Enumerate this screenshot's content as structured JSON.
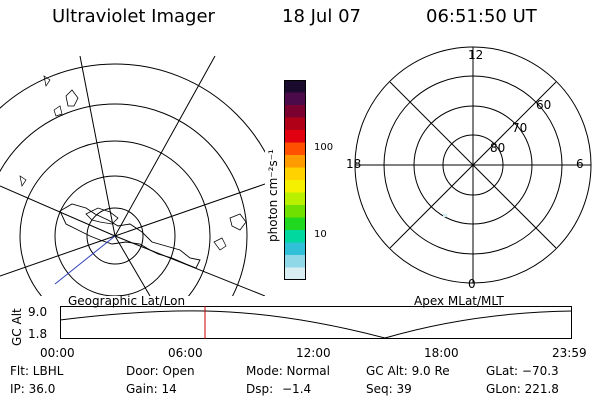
{
  "header": {
    "title": "Ultraviolet Imager",
    "date": "18 Jul 07",
    "time": "06:51:50 UT"
  },
  "colorbar": {
    "label": "photon cm⁻²s⁻¹",
    "ticks": [
      "100",
      "10"
    ],
    "colors": [
      "#1a0a2e",
      "#4b0a4a",
      "#7a0030",
      "#b00018",
      "#e00010",
      "#ff5000",
      "#ff9a00",
      "#ffd200",
      "#f4f000",
      "#b8f000",
      "#70e000",
      "#20d820",
      "#00d8a0",
      "#30c0d8",
      "#90d8e8",
      "#d8eef2"
    ]
  },
  "left_panel": {
    "label": "Geographic Lat/Lon"
  },
  "right_panel": {
    "label": "Apex  MLat/MLT",
    "mlt_labels": {
      "top": "12",
      "left": "18",
      "right": "6",
      "bottom": "0"
    },
    "lat_labels": [
      "60",
      "70",
      "80"
    ]
  },
  "timeline": {
    "axis_label": "GC Alt",
    "y_ticks": [
      "9.0",
      "1.8"
    ],
    "x_ticks": [
      "00:00",
      "06:00",
      "12:00",
      "18:00",
      "23:59"
    ],
    "current_time_color": "#cc0000"
  },
  "info": {
    "row1": {
      "flt": "Flt: LBHL",
      "door": "Door: Open",
      "mode": "Mode: Normal",
      "gcalt": "GC Alt: 9.0 Re",
      "glat": "GLat: −70.3"
    },
    "row2": {
      "ip": "IP: 36.0",
      "gain": "Gain: 14",
      "dsp_label": "Dsp:",
      "dsp_value": "−1.4",
      "seq": "Seq: 39",
      "glon": "GLon: 221.8"
    }
  }
}
